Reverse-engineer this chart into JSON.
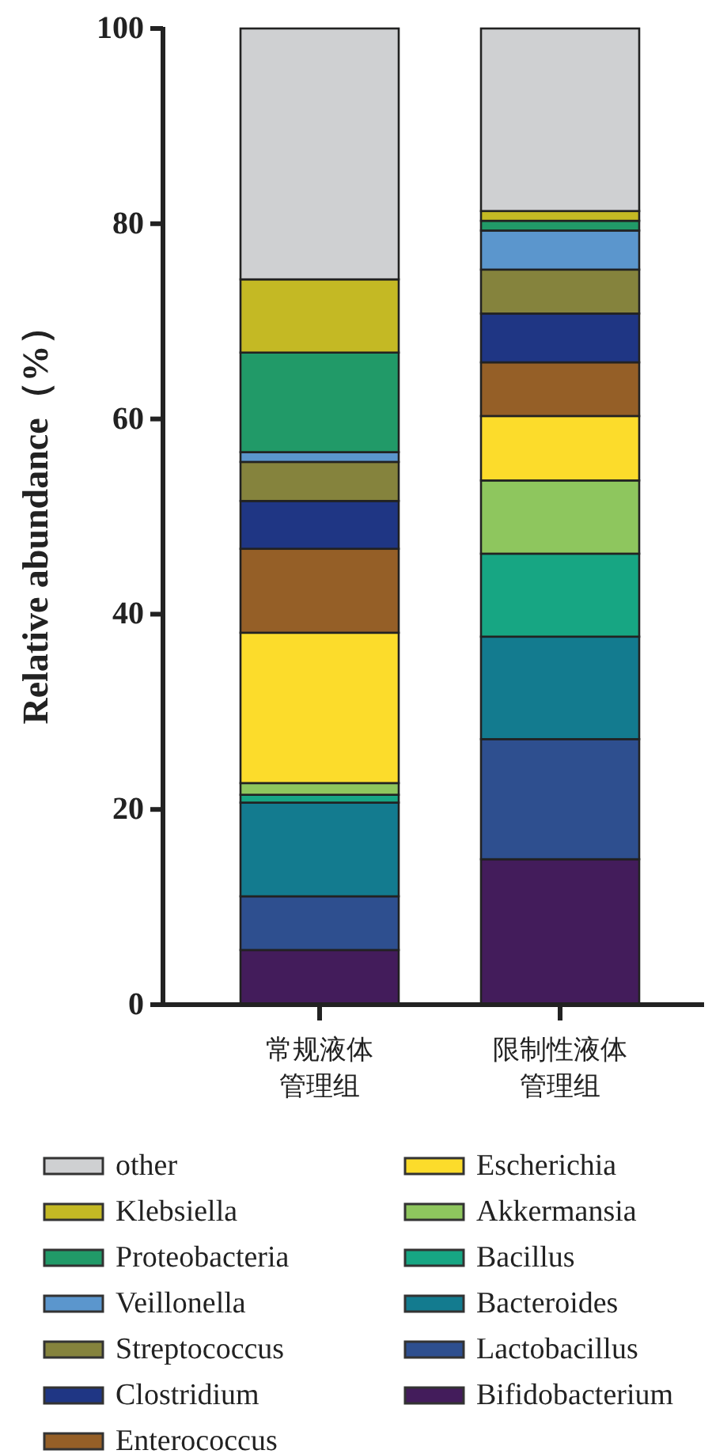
{
  "chart_data": {
    "type": "bar",
    "stacked": true,
    "ylabel": "Relative abundance（%）",
    "categories": [
      "常规液体管理组",
      "限制性液体管理组"
    ],
    "ylim": [
      0,
      100
    ],
    "yticks": [
      0,
      20,
      40,
      60,
      80,
      100
    ],
    "grid": false,
    "legend": "bottom",
    "series": [
      {
        "name": "Bifidobacterium",
        "color": "#431c5b",
        "values": [
          5.6,
          14.9
        ]
      },
      {
        "name": "Lactobacillus",
        "color": "#2e4f8f",
        "values": [
          5.5,
          12.3
        ]
      },
      {
        "name": "Bacteroides",
        "color": "#137b8f",
        "values": [
          9.6,
          10.5
        ]
      },
      {
        "name": "Bacillus",
        "color": "#17a683",
        "values": [
          0.8,
          8.5
        ]
      },
      {
        "name": "Akkermansia",
        "color": "#8ec65e",
        "values": [
          1.2,
          7.5
        ]
      },
      {
        "name": "Escherichia",
        "color": "#fcdc2b",
        "values": [
          15.4,
          6.6
        ]
      },
      {
        "name": "Enterococcus",
        "color": "#955f27",
        "values": [
          8.6,
          5.5
        ]
      },
      {
        "name": "Clostridium",
        "color": "#1f3684",
        "values": [
          4.9,
          5.0
        ]
      },
      {
        "name": "Streptococcus",
        "color": "#85833d",
        "values": [
          4.0,
          4.5
        ]
      },
      {
        "name": "Veillonella",
        "color": "#5b96cd",
        "values": [
          1.0,
          4.0
        ]
      },
      {
        "name": "Proteobacteria",
        "color": "#219a68",
        "values": [
          10.2,
          1.0
        ]
      },
      {
        "name": "Klebsiella",
        "color": "#c4b924",
        "values": [
          7.5,
          1.0
        ]
      },
      {
        "name": "other",
        "color": "#cfd0d2",
        "values": [
          25.7,
          18.7
        ]
      }
    ]
  }
}
